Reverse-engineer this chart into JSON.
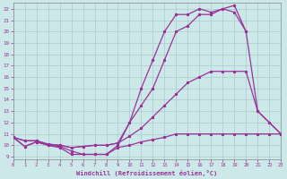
{
  "xlabel": "Windchill (Refroidissement éolien,°C)",
  "bg_color": "#cce8e8",
  "grid_color": "#aacccc",
  "line_color": "#993399",
  "x_ticks": [
    0,
    1,
    2,
    3,
    4,
    5,
    6,
    7,
    8,
    9,
    10,
    11,
    12,
    13,
    14,
    15,
    16,
    17,
    18,
    19,
    20,
    21,
    22,
    23
  ],
  "y_ticks": [
    9,
    10,
    11,
    12,
    13,
    14,
    15,
    16,
    17,
    18,
    19,
    20,
    21,
    22
  ],
  "xlim": [
    0,
    23
  ],
  "ylim": [
    8.8,
    22.5
  ],
  "line1_x": [
    0,
    1,
    2,
    3,
    4,
    5,
    6,
    7,
    8,
    9,
    10,
    11,
    12,
    13,
    14,
    15,
    16,
    17,
    18,
    19,
    20,
    21,
    22,
    23
  ],
  "line1_y": [
    10.7,
    9.9,
    10.3,
    10.0,
    9.9,
    9.5,
    9.2,
    9.2,
    9.2,
    9.8,
    10.0,
    10.3,
    10.5,
    10.7,
    11.0,
    11.0,
    11.0,
    11.0,
    11.0,
    11.0,
    11.0,
    11.0,
    11.0,
    11.0
  ],
  "line2_x": [
    0,
    1,
    2,
    3,
    4,
    5,
    6,
    7,
    8,
    9,
    10,
    11,
    12,
    13,
    14,
    15,
    16,
    17,
    18,
    19,
    20,
    21,
    22,
    23
  ],
  "line2_y": [
    10.7,
    10.4,
    10.4,
    10.1,
    10.0,
    9.8,
    9.9,
    10.0,
    10.0,
    10.2,
    10.8,
    11.5,
    12.5,
    13.5,
    14.5,
    15.5,
    16.0,
    16.5,
    16.5,
    16.5,
    16.5,
    13.0,
    12.0,
    11.0
  ],
  "line3_x": [
    0,
    1,
    2,
    3,
    4,
    5,
    6,
    7,
    8,
    9,
    10,
    11,
    12,
    13,
    14,
    15,
    16,
    17,
    18,
    19,
    20
  ],
  "line3_y": [
    10.7,
    10.4,
    10.4,
    10.1,
    10.0,
    9.8,
    9.9,
    10.0,
    10.0,
    10.2,
    12.0,
    13.5,
    15.0,
    17.5,
    20.0,
    20.5,
    21.5,
    21.5,
    22.0,
    21.7,
    20.0
  ],
  "line4_x": [
    0,
    1,
    2,
    3,
    4,
    5,
    6,
    7,
    8,
    9,
    10,
    11,
    12,
    13,
    14,
    15,
    16,
    17,
    18,
    19,
    20,
    21,
    22,
    23
  ],
  "line4_y": [
    10.7,
    9.9,
    10.3,
    10.0,
    9.8,
    9.2,
    9.2,
    9.2,
    9.2,
    10.0,
    12.0,
    15.0,
    17.5,
    20.0,
    21.5,
    21.5,
    22.0,
    21.7,
    22.0,
    22.3,
    20.0,
    13.0,
    12.0,
    11.0
  ]
}
